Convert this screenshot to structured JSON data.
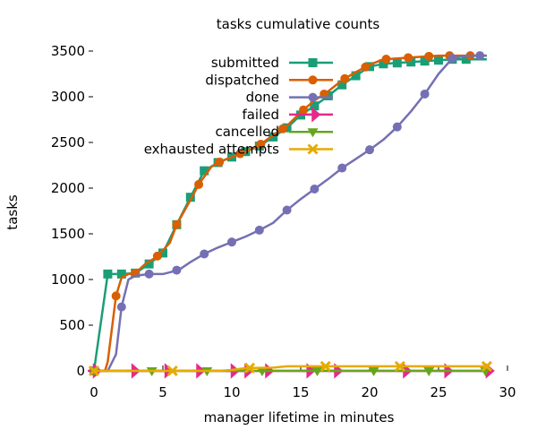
{
  "chart_data": {
    "type": "line",
    "title": "tasks cumulative counts",
    "xlabel": "manager lifetime in minutes",
    "ylabel": "tasks",
    "xlim": [
      0,
      30
    ],
    "ylim": [
      0,
      3500
    ],
    "xticks": [
      0,
      5,
      10,
      15,
      20,
      25,
      30
    ],
    "yticks": [
      0,
      500,
      1000,
      1500,
      2000,
      2500,
      3000,
      3500
    ],
    "grid": false,
    "legend_position": "top-right",
    "series": [
      {
        "name": "submitted",
        "color": "#1a9e77",
        "marker": "square",
        "points": [
          [
            0,
            0
          ],
          [
            1,
            1060
          ],
          [
            2,
            1060
          ],
          [
            3,
            1070
          ],
          [
            4,
            1170
          ],
          [
            5,
            1290
          ],
          [
            6,
            1600
          ],
          [
            7,
            1900
          ],
          [
            8,
            2190
          ],
          [
            9,
            2280
          ],
          [
            10,
            2340
          ],
          [
            11,
            2400
          ],
          [
            12,
            2460
          ],
          [
            13,
            2560
          ],
          [
            14,
            2660
          ],
          [
            15,
            2800
          ],
          [
            16,
            2900
          ],
          [
            17,
            3010
          ],
          [
            18,
            3130
          ],
          [
            19,
            3230
          ],
          [
            20,
            3330
          ],
          [
            21,
            3360
          ],
          [
            22,
            3370
          ],
          [
            23,
            3380
          ],
          [
            24,
            3390
          ],
          [
            25,
            3400
          ],
          [
            26,
            3410
          ],
          [
            27,
            3410
          ],
          [
            28,
            3410
          ],
          [
            28.5,
            3410
          ]
        ],
        "marker_x": [
          0,
          1,
          2,
          3,
          4,
          5,
          6,
          7,
          8,
          9,
          10,
          11,
          12,
          13,
          14,
          15,
          16,
          17,
          18,
          19,
          20,
          21,
          22,
          23,
          24,
          25,
          26,
          27
        ]
      },
      {
        "name": "dispatched",
        "color": "#d95f02",
        "marker": "circle",
        "points": [
          [
            0,
            0
          ],
          [
            0.8,
            0
          ],
          [
            1,
            100
          ],
          [
            1.6,
            820
          ],
          [
            2,
            1020
          ],
          [
            2.5,
            1060
          ],
          [
            3,
            1070
          ],
          [
            3.8,
            1180
          ],
          [
            4.5,
            1240
          ],
          [
            5.5,
            1400
          ],
          [
            6,
            1600
          ],
          [
            7,
            1870
          ],
          [
            7.6,
            2040
          ],
          [
            8.5,
            2230
          ],
          [
            9,
            2280
          ],
          [
            10,
            2340
          ],
          [
            11,
            2400
          ],
          [
            12,
            2470
          ],
          [
            13,
            2580
          ],
          [
            14,
            2680
          ],
          [
            15,
            2830
          ],
          [
            16,
            2960
          ],
          [
            17,
            3060
          ],
          [
            18,
            3180
          ],
          [
            19,
            3270
          ],
          [
            20,
            3350
          ],
          [
            21,
            3410
          ],
          [
            22,
            3420
          ],
          [
            23,
            3430
          ],
          [
            24,
            3440
          ],
          [
            25,
            3450
          ],
          [
            26,
            3450
          ],
          [
            27,
            3450
          ],
          [
            28.5,
            3450
          ]
        ],
        "marker_x": [
          0,
          1.6,
          3,
          4.6,
          6,
          7.6,
          9.1,
          10.6,
          12.1,
          13.7,
          15.2,
          16.7,
          18.2,
          19.7,
          21.2,
          22.8,
          24.3,
          25.8,
          27.3
        ]
      },
      {
        "name": "done",
        "color": "#7570b3",
        "marker": "circle",
        "points": [
          [
            0,
            0
          ],
          [
            1,
            0
          ],
          [
            1.6,
            180
          ],
          [
            2,
            700
          ],
          [
            2.5,
            1000
          ],
          [
            3,
            1040
          ],
          [
            4,
            1060
          ],
          [
            5,
            1060
          ],
          [
            5.8,
            1090
          ],
          [
            6.3,
            1120
          ],
          [
            7,
            1190
          ],
          [
            8,
            1280
          ],
          [
            9,
            1350
          ],
          [
            10,
            1410
          ],
          [
            11,
            1470
          ],
          [
            12,
            1540
          ],
          [
            13,
            1620
          ],
          [
            14,
            1760
          ],
          [
            15,
            1880
          ],
          [
            16,
            1990
          ],
          [
            17,
            2100
          ],
          [
            18,
            2220
          ],
          [
            19,
            2320
          ],
          [
            20,
            2420
          ],
          [
            21,
            2530
          ],
          [
            22,
            2670
          ],
          [
            23,
            2840
          ],
          [
            24,
            3030
          ],
          [
            25,
            3250
          ],
          [
            26,
            3420
          ],
          [
            27,
            3450
          ],
          [
            28.5,
            3450
          ]
        ],
        "marker_x": [
          0,
          2,
          4,
          6,
          8,
          10,
          12,
          14,
          16,
          18,
          20,
          22,
          24,
          26,
          28
        ]
      },
      {
        "name": "failed",
        "color": "#e7298a",
        "marker": "arrow",
        "points": [
          [
            0,
            0
          ],
          [
            28.5,
            0
          ]
        ],
        "marker_x": [
          0,
          2.8,
          5.2,
          7.5,
          10,
          11,
          12.5,
          15.5,
          17.5,
          22.5,
          25.5,
          28.5
        ]
      },
      {
        "name": "cancelled",
        "color": "#66a61e",
        "marker": "triangle-down",
        "points": [
          [
            0,
            0
          ],
          [
            28.5,
            0
          ]
        ],
        "marker_x": [
          0,
          4.2,
          8.2,
          12.2,
          16.2,
          20.3,
          24.3,
          28.4
        ]
      },
      {
        "name": "exhausted attempts",
        "color": "#e6ab02",
        "marker": "x",
        "points": [
          [
            0,
            0
          ],
          [
            5,
            0
          ],
          [
            7,
            0
          ],
          [
            9,
            0
          ],
          [
            10,
            10
          ],
          [
            11,
            30
          ],
          [
            13,
            35
          ],
          [
            14,
            50
          ],
          [
            28.5,
            50
          ]
        ],
        "marker_x": [
          0,
          5.7,
          11.3,
          16.8,
          22.2,
          28.5
        ]
      }
    ]
  }
}
